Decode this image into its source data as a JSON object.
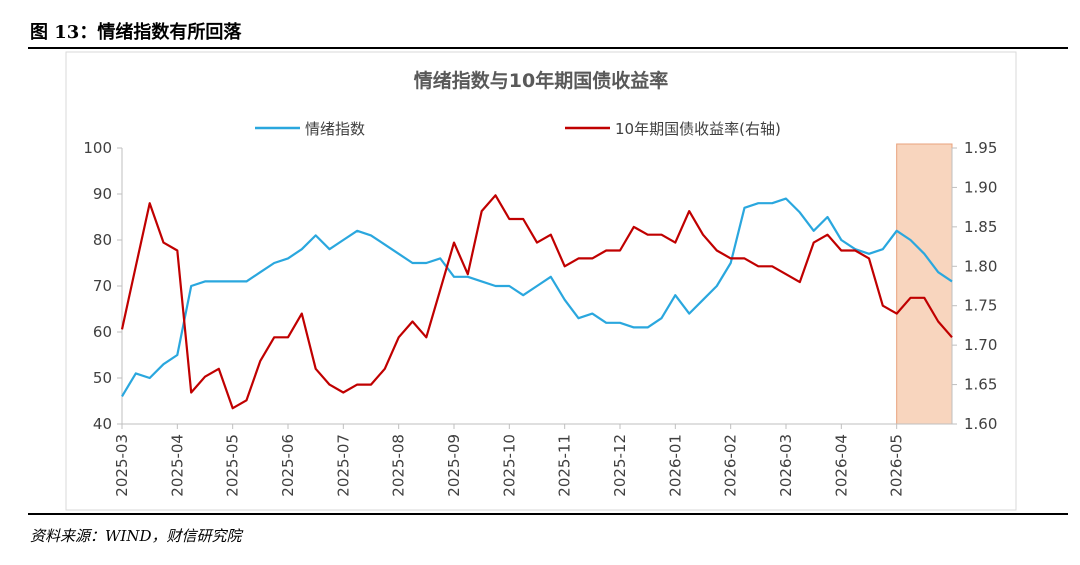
{
  "caption": "图 13：情绪指数有所回落",
  "source": "资料来源：WIND，财信研究院",
  "chart_data": {
    "type": "line",
    "title": "情绪指数与10年期国债收益率",
    "categories": [
      "2025-03",
      null,
      null,
      null,
      "2025-04",
      null,
      null,
      null,
      "2025-05",
      null,
      null,
      null,
      "2025-06",
      null,
      null,
      null,
      "2025-07",
      null,
      null,
      null,
      "2025-08",
      null,
      null,
      null,
      "2025-09",
      null,
      null,
      null,
      "2025-10",
      null,
      null,
      null,
      "2025-11",
      null,
      null,
      null,
      "2025-12",
      null,
      null,
      null,
      "2026-01",
      null,
      null,
      null,
      "2026-02",
      null,
      null,
      null,
      "2026-03",
      null,
      null,
      null,
      "2026-04",
      null,
      null,
      null,
      "2026-05",
      null,
      null,
      null,
      null
    ],
    "series": [
      {
        "name": "情绪指数",
        "color": "#2aa7de",
        "axis": "y",
        "values": [
          46,
          51,
          50,
          53,
          55,
          70,
          71,
          71,
          71,
          71,
          73,
          75,
          76,
          78,
          81,
          78,
          80,
          82,
          81,
          79,
          77,
          75,
          75,
          76,
          72,
          72,
          71,
          70,
          70,
          68,
          70,
          72,
          67,
          63,
          64,
          62,
          62,
          61,
          61,
          63,
          68,
          64,
          67,
          70,
          75,
          87,
          88,
          88,
          89,
          86,
          82,
          85,
          80,
          78,
          77,
          78,
          82,
          80,
          77,
          73,
          71
        ]
      },
      {
        "name": "10年期国债收益率(右轴)",
        "color": "#c00000",
        "axis": "y2",
        "values": [
          1.72,
          1.8,
          1.88,
          1.83,
          1.82,
          1.64,
          1.66,
          1.67,
          1.62,
          1.63,
          1.68,
          1.71,
          1.71,
          1.74,
          1.67,
          1.65,
          1.64,
          1.65,
          1.65,
          1.67,
          1.71,
          1.73,
          1.71,
          1.77,
          1.83,
          1.79,
          1.87,
          1.89,
          1.86,
          1.86,
          1.83,
          1.84,
          1.8,
          1.81,
          1.81,
          1.82,
          1.82,
          1.85,
          1.84,
          1.84,
          1.83,
          1.87,
          1.84,
          1.82,
          1.81,
          1.81,
          1.8,
          1.8,
          1.79,
          1.78,
          1.83,
          1.84,
          1.82,
          1.82,
          1.81,
          1.75,
          1.74,
          1.76,
          1.76,
          1.73,
          1.71
        ]
      }
    ],
    "ylim": [
      40,
      100
    ],
    "yticks": [
      40,
      50,
      60,
      70,
      80,
      90,
      100
    ],
    "y2lim": [
      1.6,
      1.95
    ],
    "y2ticks": [
      {
        "value": 1.6,
        "label": "1.60"
      },
      1.65,
      {
        "value": 1.7,
        "label": "1.70"
      },
      1.75,
      {
        "value": 1.8,
        "label": "1.80"
      },
      1.85,
      {
        "value": 1.9,
        "label": "1.90"
      },
      1.95
    ],
    "legend": "top"
  }
}
